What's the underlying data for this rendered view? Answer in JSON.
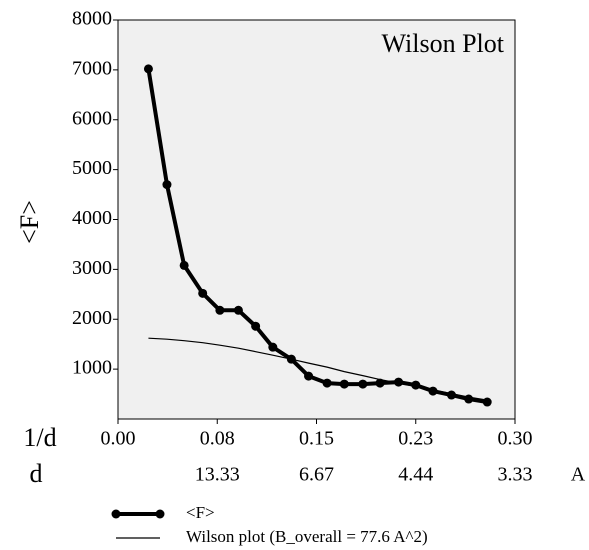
{
  "chart_data": {
    "type": "line",
    "title": "Wilson Plot",
    "ylabel": "<F>",
    "xlabel": "1/d",
    "x2label": "d",
    "x2unit": "A",
    "x": [
      0.023,
      0.037,
      0.05,
      0.064,
      0.077,
      0.091,
      0.104,
      0.117,
      0.131,
      0.144,
      0.158,
      0.171,
      0.185,
      0.198,
      0.212,
      0.225,
      0.238,
      0.252,
      0.265,
      0.279
    ],
    "series": [
      {
        "name": "<F>",
        "color": "#000000",
        "marker": true,
        "values": [
          7020,
          4700,
          3080,
          2520,
          2180,
          2180,
          1860,
          1440,
          1200,
          860,
          720,
          700,
          700,
          720,
          740,
          680,
          560,
          480,
          400,
          340
        ]
      },
      {
        "name": "Wilson plot (B_overall =  77.6 A^2)",
        "color": "#000000",
        "marker": false,
        "values": [
          1620,
          1600,
          1570,
          1530,
          1480,
          1420,
          1350,
          1280,
          1200,
          1120,
          1040,
          950,
          870,
          790,
          720,
          650,
          580,
          510,
          440,
          380
        ]
      }
    ],
    "xlim": [
      0,
      0.3
    ],
    "ylim": [
      0,
      8000
    ],
    "xticks": [
      {
        "value": 0,
        "label": "0.00"
      },
      {
        "value": 0.075,
        "label": "0.08"
      },
      {
        "value": 0.15,
        "label": "0.15"
      },
      {
        "value": 0.225,
        "label": "0.23"
      },
      {
        "value": 0.3,
        "label": "0.30"
      }
    ],
    "x2ticks": [
      {
        "value": 0.075,
        "label": "13.33"
      },
      {
        "value": 0.15,
        "label": "6.67"
      },
      {
        "value": 0.225,
        "label": "4.44"
      },
      {
        "value": 0.3,
        "label": "3.33"
      }
    ],
    "yticks": [
      1000,
      2000,
      3000,
      4000,
      5000,
      6000,
      7000,
      8000
    ],
    "background": "#f0f0f0"
  }
}
